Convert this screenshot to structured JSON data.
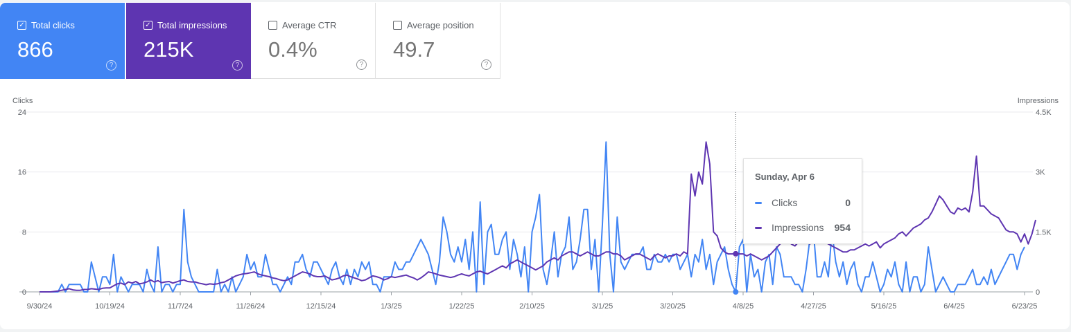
{
  "cards": [
    {
      "label": "Total clicks",
      "value": "866",
      "checked": true
    },
    {
      "label": "Total impressions",
      "value": "215K",
      "checked": true
    },
    {
      "label": "Average CTR",
      "value": "0.4%",
      "checked": false
    },
    {
      "label": "Average position",
      "value": "49.7",
      "checked": false
    }
  ],
  "help_glyph": "?",
  "check_glyph": "✓",
  "colors": {
    "clicks": "#4285f4",
    "impressions": "#5e35b1"
  },
  "tooltip": {
    "date": "Sunday, Apr 6",
    "rows": [
      {
        "name": "Clicks",
        "value": "0"
      },
      {
        "name": "Impressions",
        "value": "954"
      }
    ]
  },
  "chart_data": {
    "type": "line",
    "start_date": "9/30/24",
    "end_date": "6/23/25",
    "xticks": [
      "9/30/24",
      "10/19/24",
      "11/7/24",
      "11/26/24",
      "12/15/24",
      "1/3/25",
      "1/22/25",
      "2/10/25",
      "3/1/25",
      "3/20/25",
      "4/8/25",
      "4/27/25",
      "5/16/25",
      "6/4/25",
      "6/23/25"
    ],
    "left_axis": {
      "label": "Clicks",
      "ticks": [
        "0",
        "8",
        "16",
        "24"
      ],
      "range": [
        0,
        24
      ]
    },
    "right_axis": {
      "label": "Impressions",
      "ticks": [
        "0",
        "1.5K",
        "3K",
        "4.5K"
      ],
      "range": [
        0,
        4500
      ]
    },
    "hover_index": 188,
    "series": [
      {
        "name": "Clicks",
        "axis": "left",
        "values": [
          0,
          0,
          0,
          0,
          0,
          0,
          1,
          0,
          1,
          1,
          1,
          1,
          0,
          0,
          4,
          2,
          0,
          2,
          2,
          1,
          5,
          0,
          2,
          1,
          0,
          1,
          1,
          1,
          0,
          3,
          1,
          0,
          6,
          0,
          1,
          1,
          0,
          1,
          1,
          11,
          4,
          2,
          1,
          0,
          0,
          0,
          0,
          0,
          3,
          0,
          1,
          0,
          2,
          0,
          1,
          2,
          5,
          3,
          4,
          2,
          2,
          5,
          3,
          1,
          1,
          0,
          1,
          2,
          1,
          4,
          4,
          5,
          3,
          2,
          4,
          4,
          3,
          2,
          1,
          3,
          4,
          2,
          1,
          3,
          1,
          3,
          2,
          4,
          3,
          4,
          1,
          1,
          0,
          2,
          2,
          2,
          4,
          3,
          3,
          4,
          4,
          5,
          6,
          7,
          6,
          5,
          3,
          1,
          4,
          10,
          8,
          5,
          4,
          6,
          4,
          7,
          3,
          8,
          0,
          12,
          1,
          8,
          9,
          5,
          5,
          7,
          8,
          3,
          7,
          5,
          2,
          6,
          0,
          8,
          10,
          13,
          3,
          1,
          4,
          8,
          2,
          5,
          6,
          10,
          3,
          4,
          7,
          11,
          11,
          3,
          7,
          0,
          9,
          20,
          5,
          0,
          10,
          4,
          3,
          4,
          5,
          5,
          5,
          6,
          3,
          3,
          5,
          4,
          4,
          5,
          4,
          5,
          5,
          3,
          4,
          5,
          2,
          5,
          4,
          7,
          3,
          5,
          1,
          4,
          5,
          6,
          3,
          1,
          0,
          6,
          7,
          0,
          5,
          2,
          3,
          0,
          4,
          5,
          1,
          6,
          5,
          2,
          2,
          2,
          1,
          1,
          0,
          3,
          7,
          8,
          2,
          2,
          4,
          2,
          8,
          4,
          2,
          4,
          1,
          3,
          4,
          1,
          0,
          2,
          2,
          4,
          2,
          0,
          1,
          3,
          2,
          4,
          1,
          0,
          4,
          0,
          2,
          2,
          0,
          1,
          6,
          3,
          0,
          1,
          2,
          1,
          0,
          0,
          1,
          1,
          1,
          2,
          3,
          1,
          1,
          2,
          1,
          3,
          1,
          2,
          3,
          4,
          5,
          5,
          3,
          5,
          6
        ]
      },
      {
        "name": "Impressions",
        "axis": "right",
        "values": [
          0,
          0,
          0,
          0,
          10,
          20,
          40,
          60,
          80,
          50,
          40,
          40,
          60,
          60,
          80,
          70,
          60,
          90,
          100,
          100,
          150,
          200,
          220,
          180,
          250,
          220,
          260,
          200,
          220,
          250,
          300,
          250,
          280,
          230,
          250,
          260,
          220,
          250,
          280,
          300,
          260,
          250,
          250,
          220,
          200,
          180,
          200,
          190,
          200,
          230,
          250,
          300,
          350,
          400,
          430,
          450,
          460,
          480,
          500,
          450,
          420,
          400,
          380,
          350,
          330,
          300,
          280,
          300,
          350,
          400,
          450,
          500,
          480,
          450,
          400,
          380,
          380,
          400,
          350,
          300,
          320,
          350,
          400,
          420,
          380,
          350,
          320,
          280,
          300,
          350,
          400,
          380,
          350,
          300,
          330,
          380,
          360,
          380,
          400,
          420,
          380,
          350,
          300,
          350,
          420,
          500,
          480,
          450,
          420,
          400,
          380,
          360,
          380,
          420,
          450,
          420,
          400,
          450,
          500,
          520,
          480,
          450,
          500,
          550,
          600,
          650,
          600,
          700,
          750,
          800,
          750,
          700,
          650,
          600,
          550,
          600,
          650,
          750,
          800,
          850,
          800,
          900,
          950,
          1000,
          1000,
          950,
          900,
          950,
          1000,
          950,
          900,
          900,
          950,
          1000,
          1000,
          950,
          950,
          900,
          800,
          850,
          900,
          950,
          950,
          900,
          850,
          800,
          900,
          950,
          900,
          850,
          900,
          900,
          950,
          900,
          1000,
          950,
          2950,
          2400,
          3000,
          2700,
          3750,
          3200,
          1500,
          1400,
          1100,
          1000,
          950,
          950,
          954,
          950,
          950,
          900,
          950,
          900,
          850,
          800,
          850,
          900,
          1000,
          1100,
          1200,
          1300,
          1300,
          1200,
          1150,
          1250,
          1350,
          1250,
          1200,
          1250,
          1300,
          1300,
          1250,
          1200,
          1150,
          1100,
          1050,
          1000,
          1000,
          1050,
          1050,
          1100,
          1150,
          1200,
          1150,
          1200,
          1250,
          1100,
          1200,
          1250,
          1300,
          1350,
          1450,
          1500,
          1400,
          1500,
          1600,
          1650,
          1700,
          1800,
          1850,
          2000,
          2200,
          2400,
          2300,
          2150,
          2000,
          1950,
          2100,
          2050,
          2100,
          2000,
          2500,
          3400,
          2150,
          2150,
          2050,
          1950,
          1900,
          1850,
          1700,
          1550,
          1500,
          1500,
          1450,
          1250,
          1450,
          1200,
          1450,
          1800
        ]
      }
    ]
  }
}
